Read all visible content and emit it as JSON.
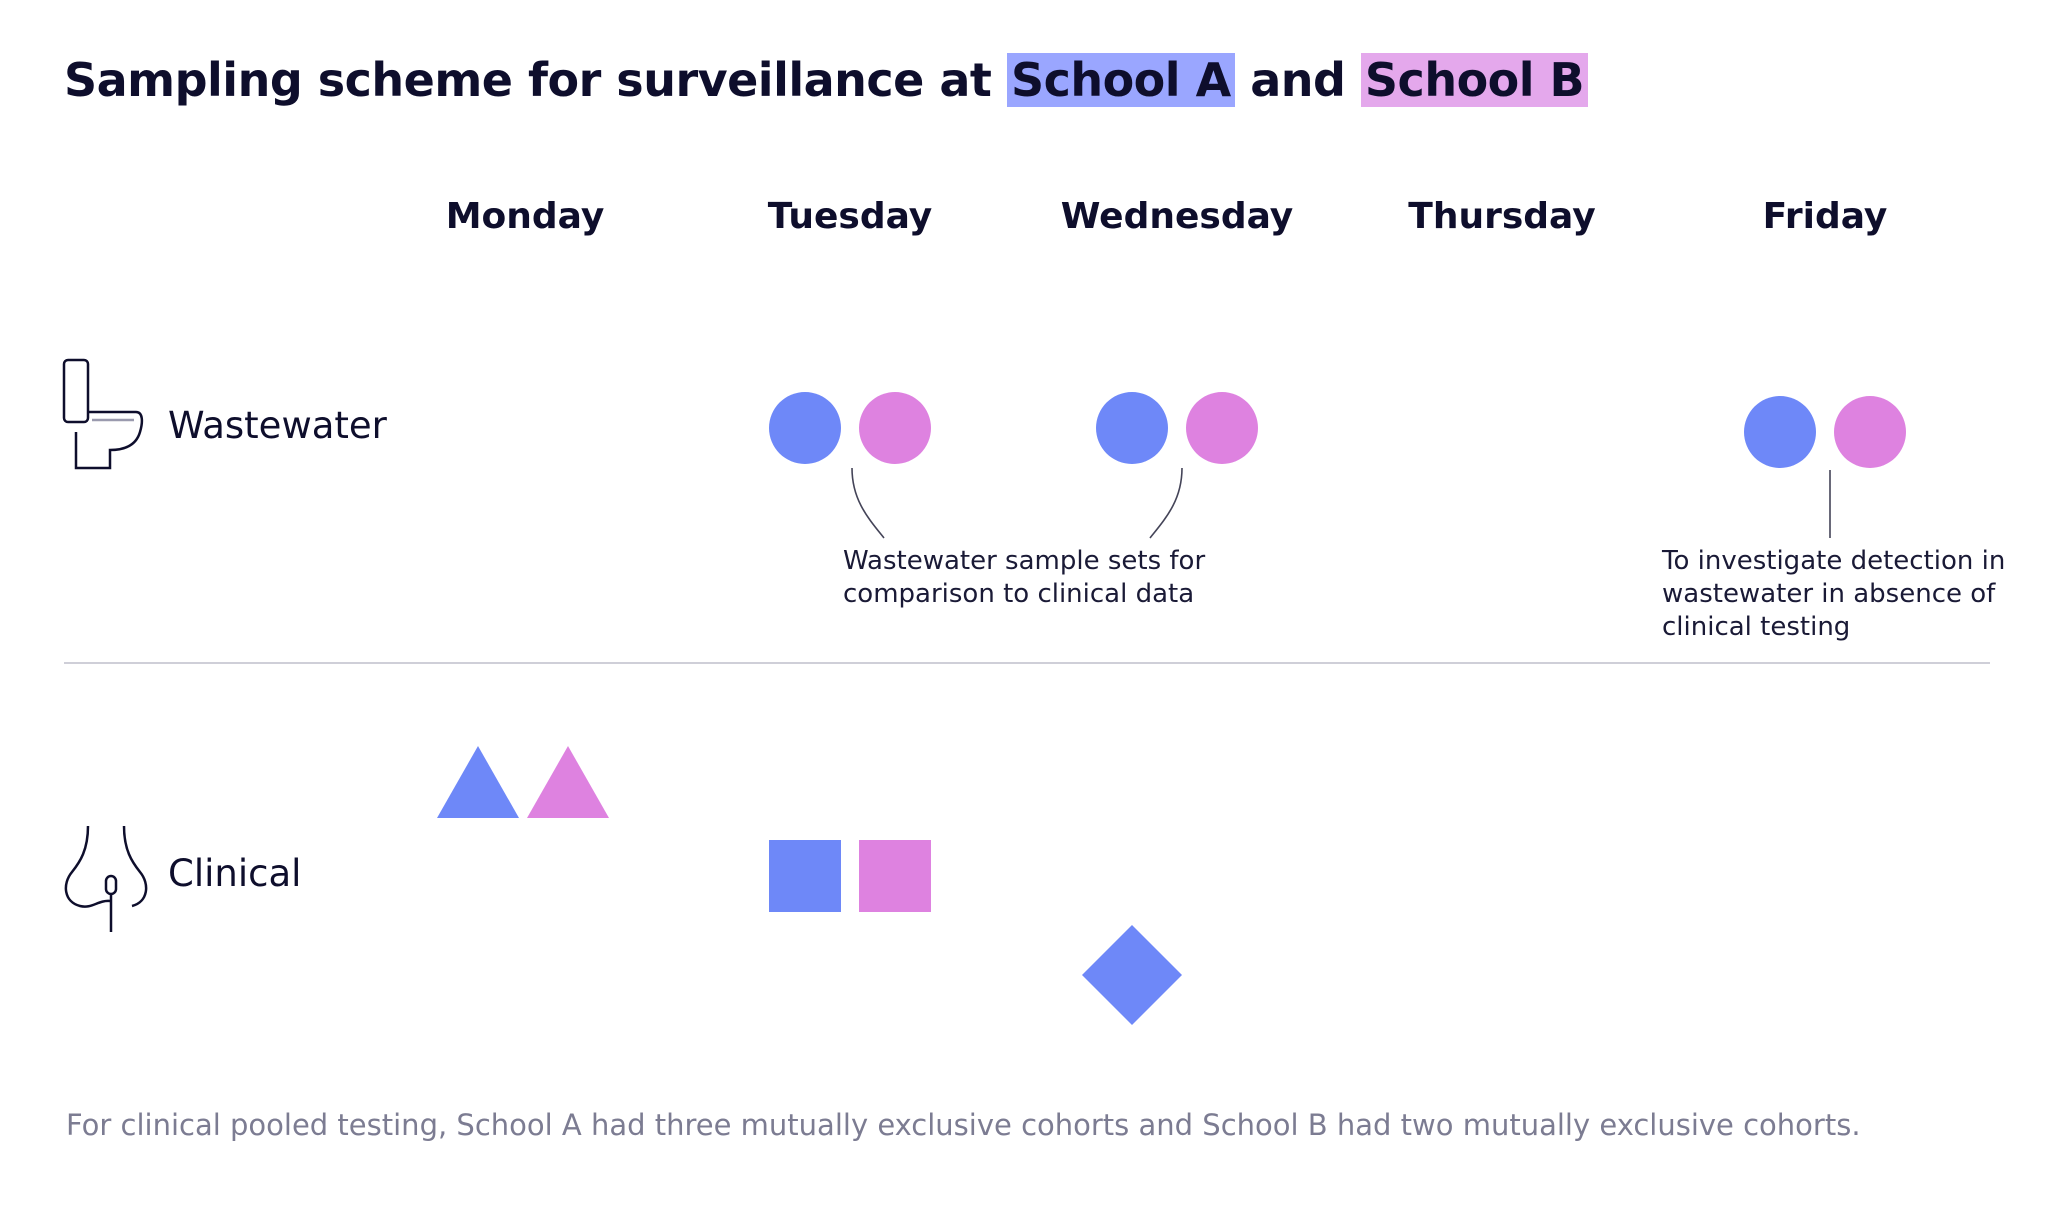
{
  "title": {
    "prefix": "Sampling scheme for surveillance at",
    "school_a": "School A",
    "middle": "and",
    "school_b": "School B"
  },
  "days": [
    "Monday",
    "Tuesday",
    "Wednesday",
    "Thursday",
    "Friday"
  ],
  "rows": {
    "wastewater": {
      "label": "Wastewater",
      "icon": "toilet-icon"
    },
    "clinical": {
      "label": "Clinical",
      "icon": "nose-swab-icon"
    }
  },
  "notes": {
    "comparison": [
      "Wastewater sample sets for",
      "comparison to clinical data"
    ],
    "investigate": [
      "To investigate detection in",
      "wastewater in absence of",
      "clinical testing"
    ]
  },
  "footer": "For clinical pooled testing, School A had three mutually exclusive cohorts and School B had two mutually exclusive cohorts.",
  "colors": {
    "school_a": "#6e88f8",
    "school_b": "#de82e0",
    "school_a_highlight": "#9aa6ff",
    "school_b_highlight": "#e4a8ec",
    "ink": "#0e0e2c",
    "divider": "#cfcfd8"
  },
  "samples": [
    {
      "row": "wastewater",
      "day": "Tuesday",
      "school": "School A",
      "shape": "circle"
    },
    {
      "row": "wastewater",
      "day": "Tuesday",
      "school": "School B",
      "shape": "circle"
    },
    {
      "row": "wastewater",
      "day": "Wednesday",
      "school": "School A",
      "shape": "circle"
    },
    {
      "row": "wastewater",
      "day": "Wednesday",
      "school": "School B",
      "shape": "circle"
    },
    {
      "row": "wastewater",
      "day": "Friday",
      "school": "School A",
      "shape": "circle"
    },
    {
      "row": "wastewater",
      "day": "Friday",
      "school": "School B",
      "shape": "circle"
    },
    {
      "row": "clinical",
      "day": "Monday",
      "school": "School A",
      "shape": "triangle"
    },
    {
      "row": "clinical",
      "day": "Monday",
      "school": "School B",
      "shape": "triangle"
    },
    {
      "row": "clinical",
      "day": "Tuesday",
      "school": "School A",
      "shape": "square"
    },
    {
      "row": "clinical",
      "day": "Tuesday",
      "school": "School B",
      "shape": "square"
    },
    {
      "row": "clinical",
      "day": "Wednesday",
      "school": "School A",
      "shape": "diamond"
    }
  ]
}
